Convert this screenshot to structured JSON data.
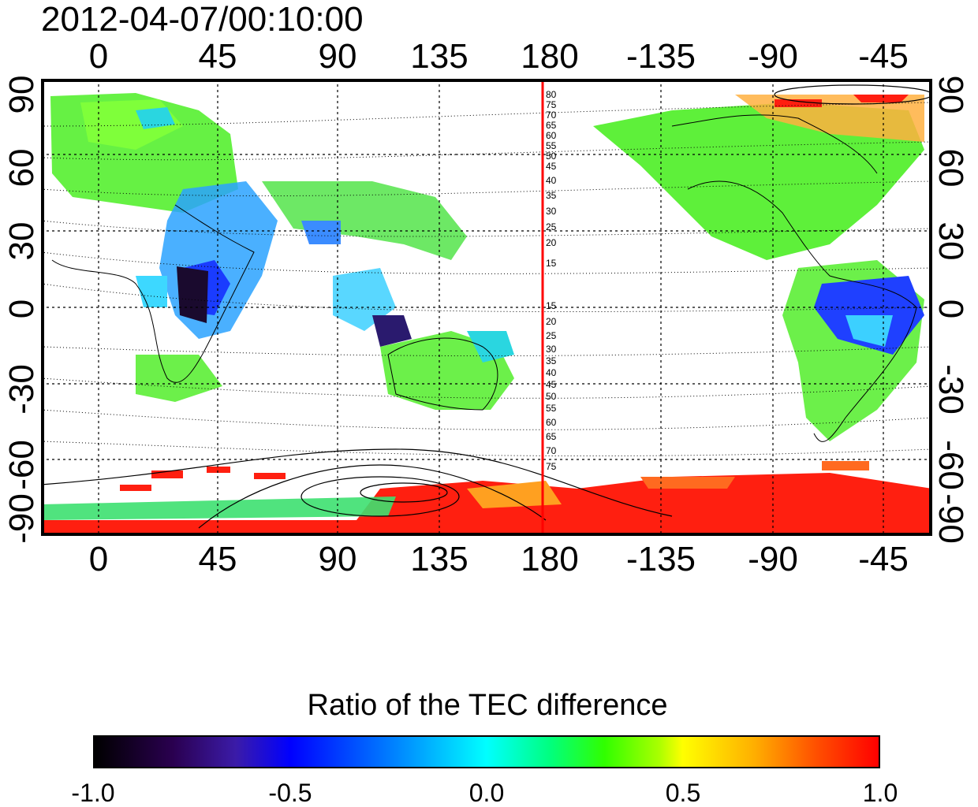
{
  "timestamp": "2012-04-07/00:10:00",
  "x_ticks": [
    "0",
    "45",
    "90",
    "135",
    "180",
    "-135",
    "-90",
    "-45"
  ],
  "y_ticks": [
    "90",
    "60",
    "30",
    "0",
    "-30",
    "-60",
    "-90"
  ],
  "contour_labels_north": [
    "80",
    "75",
    "70",
    "65",
    "60",
    "55",
    "50",
    "45",
    "40",
    "35",
    "30",
    "25",
    "20",
    "15"
  ],
  "contour_labels_south": [
    "15",
    "20",
    "25",
    "30",
    "35",
    "40",
    "45",
    "50",
    "55",
    "60",
    "65",
    "70",
    "75"
  ],
  "colorbar": {
    "title": "Ratio of the TEC difference",
    "ticks": [
      "-1.0",
      "-0.5",
      "0.0",
      "0.5",
      "1.0"
    ],
    "range": [
      -1.0,
      1.0
    ]
  },
  "colors": {
    "meridian_line": "#ff0000",
    "frame": "#000000",
    "grid": "#000000"
  }
}
